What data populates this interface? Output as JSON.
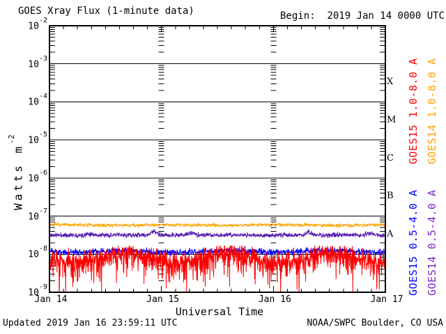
{
  "footer": {
    "updated": "Updated 2019 Jan 16 23:59:11 UTC",
    "agency": "NOAA/SWPC Boulder, CO USA"
  },
  "chart_data": {
    "type": "line",
    "title": "GOES Xray Flux (1-minute data)",
    "begin_label": "Begin:  2019 Jan 14 0000 UTC",
    "x_axis": {
      "label": "Universal Time",
      "tick_labels": [
        "Jan 14",
        "Jan 15",
        "Jan 16",
        "Jan 17"
      ],
      "span_days": 3,
      "minor_tick_interval_hours": 3
    },
    "y_axis": {
      "label_base": "Watts m",
      "label_exponent": "-2",
      "scale": "log10",
      "tick_exponents": [
        -2,
        -3,
        -4,
        -5,
        -6,
        -7,
        -8,
        -9
      ],
      "ylim": [
        1e-09,
        0.01
      ],
      "grid": "solid-decade-lines"
    },
    "flare_class_bands": [
      {
        "label": "X",
        "band_exponents": [
          -4,
          -3
        ]
      },
      {
        "label": "M",
        "band_exponents": [
          -5,
          -4
        ]
      },
      {
        "label": "C",
        "band_exponents": [
          -6,
          -5
        ]
      },
      {
        "label": "B",
        "band_exponents": [
          -7,
          -6
        ]
      },
      {
        "label": "A",
        "band_exponents": [
          -8,
          -7
        ]
      }
    ],
    "day_gridlines": {
      "style": "log-minor-tick-columns",
      "positions_days": [
        1,
        2
      ]
    },
    "series": [
      {
        "id": "goes14-long",
        "name": "GOES14 1.0-8.0 A",
        "color": "#ffa300",
        "approx_flux_wm2": 5.8e-08,
        "label": {
          "column": 1,
          "block": "top"
        },
        "gen": {
          "seed": 7,
          "points": 1100,
          "level_log10": -7.235,
          "noise_log10": 0.022,
          "wave": {
            "amp": 0.008,
            "freq": 3.0,
            "phase": 0.2
          }
        }
      },
      {
        "id": "goes14-short",
        "name": "GOES14 0.5-4.0 A",
        "color": "#5516ae",
        "label_color": "#7d26cd",
        "approx_flux_wm2": 3.1e-08,
        "label": {
          "column": 1,
          "block": "bottom"
        },
        "gen": {
          "seed": 11,
          "points": 1100,
          "level_log10": -7.5,
          "noise_log10": 0.03,
          "bumps": [
            {
              "t": 0.12,
              "amp": 0.04,
              "w": 0.01
            },
            {
              "t": 0.31,
              "amp": 0.1,
              "w": 0.008
            },
            {
              "t": 0.42,
              "amp": 0.05,
              "w": 0.012
            },
            {
              "t": 0.77,
              "amp": 0.07,
              "w": 0.008
            },
            {
              "t": 0.95,
              "amp": 0.04,
              "w": 0.01
            }
          ]
        }
      },
      {
        "id": "goes15-short",
        "name": "GOES15 0.5-4.0 A",
        "color": "#0000f5",
        "approx_flux_wm2": 1.2e-08,
        "label": {
          "column": 0,
          "block": "bottom"
        },
        "gen": {
          "seed": 23,
          "points": 1300,
          "level_log10": -7.93,
          "noise_log10": 0.042,
          "wave": {
            "amp": 0.02,
            "freq": 3.3,
            "phase": 0.5
          }
        }
      },
      {
        "id": "goes15-long",
        "name": "GOES15 1.0-8.0 A",
        "color": "#fb0000",
        "approx_flux_wm2": 9e-09,
        "label": {
          "column": 0,
          "block": "top"
        },
        "gen": {
          "seed": 42,
          "points": 1600,
          "level_log10": -8.05,
          "noise_log10": 0.11,
          "max_log10": -7.78,
          "wave": {
            "amp": 0.12,
            "freq": 3.3,
            "phase": 0.5
          },
          "tail_down": {
            "prob": 0.55,
            "scale": 0.16
          },
          "deep_spikes": [
            {
              "t": 0.029,
              "level_log10": -8.97
            },
            {
              "t": 0.23,
              "level_log10": -8.6
            },
            {
              "t": 0.335,
              "level_log10": -8.62
            },
            {
              "t": 0.405,
              "level_log10": -8.66
            },
            {
              "t": 0.52,
              "level_log10": -8.55
            },
            {
              "t": 0.655,
              "level_log10": -8.9
            },
            {
              "t": 0.93,
              "level_log10": -8.55
            },
            {
              "t": 0.975,
              "level_log10": -8.6
            }
          ]
        }
      }
    ]
  }
}
